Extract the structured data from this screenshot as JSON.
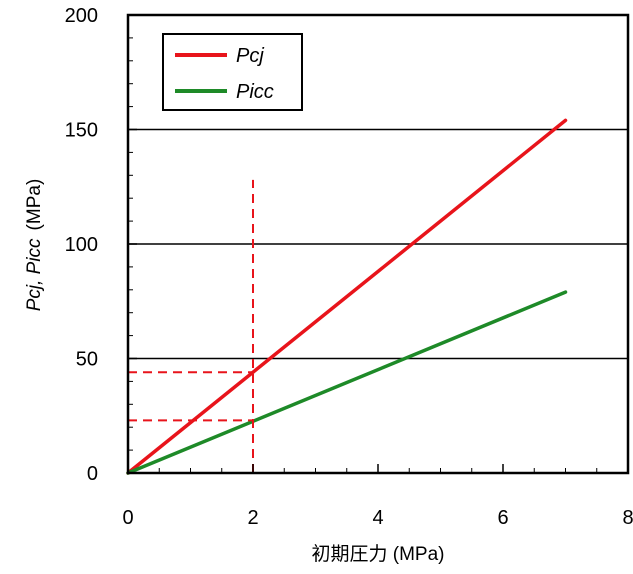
{
  "chart_data": {
    "type": "line",
    "xlabel": "初期圧力 (MPa)",
    "ylabel_italic": "Pcj, Picc",
    "ylabel_unit": "(MPa)",
    "xlim": [
      0,
      8
    ],
    "ylim": [
      0,
      200
    ],
    "x_ticks": [
      0,
      2,
      4,
      6,
      8
    ],
    "x_tick_labels": [
      "0",
      "2",
      "4",
      "6",
      "8"
    ],
    "y_ticks": [
      0,
      50,
      100,
      150,
      200
    ],
    "y_tick_labels": [
      "0",
      "50",
      "100",
      "150",
      "200"
    ],
    "gridlines_y": [
      50,
      100,
      150
    ],
    "legend_position": "top-left",
    "series": [
      {
        "name": "Pcj",
        "color": "#e8141b",
        "x": [
          0,
          7
        ],
        "values": [
          0,
          154
        ]
      },
      {
        "name": "Picc",
        "color": "#1e8a28",
        "x": [
          0,
          7
        ],
        "values": [
          0,
          79
        ]
      }
    ],
    "reference_lines": {
      "color": "#e8141b",
      "style": "dashed",
      "vertical_x": 2,
      "vertical_y_top": 128,
      "horizontal_values": [
        44,
        23
      ]
    }
  }
}
